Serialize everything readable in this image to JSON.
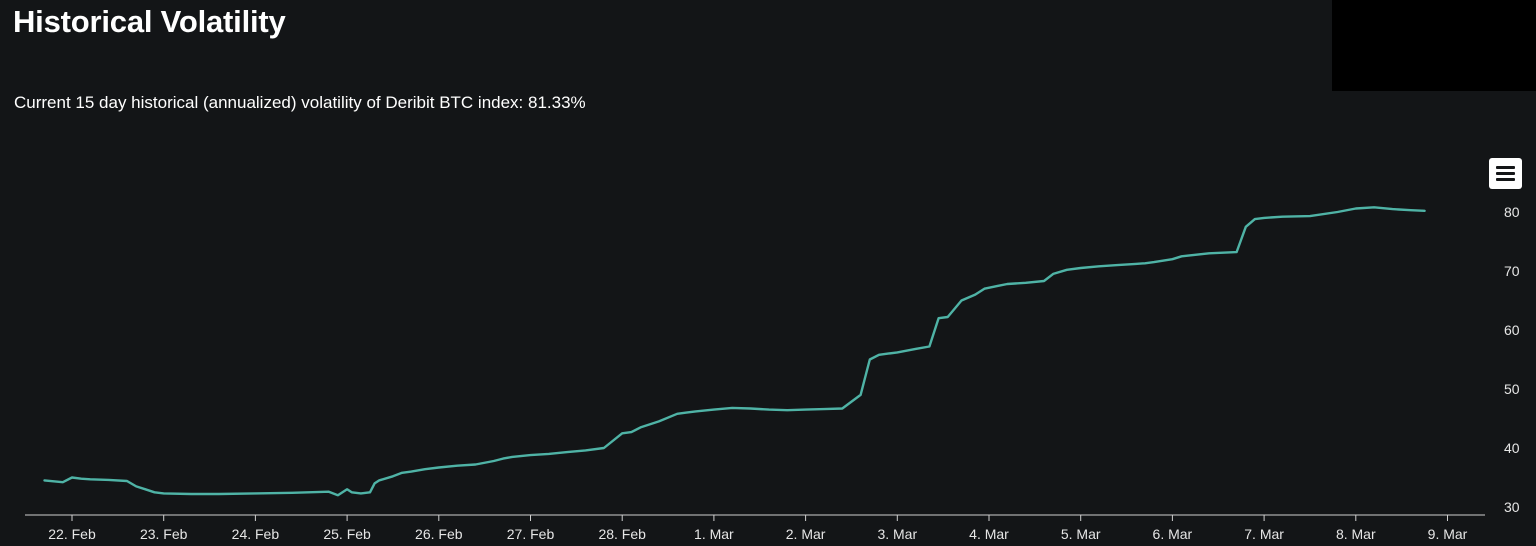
{
  "header": {
    "title": "Historical Volatility",
    "subtitle": "Current 15 day historical (annualized) volatility of Deribit BTC index: 81.33%"
  },
  "toolbar": {
    "menu_icon": "hamburger-menu-icon"
  },
  "colors": {
    "background": "#131517",
    "line": "#4fb3a6",
    "axis": "#cfcfcf",
    "text": "#ffffff"
  },
  "chart_data": {
    "type": "line",
    "title": "",
    "xlabel": "",
    "ylabel": "",
    "categories": [
      "22. Feb",
      "23. Feb",
      "24. Feb",
      "25. Feb",
      "26. Feb",
      "27. Feb",
      "28. Feb",
      "1. Mar",
      "2. Mar",
      "3. Mar",
      "4. Mar",
      "5. Mar",
      "6. Mar",
      "7. Mar",
      "8. Mar",
      "9. Mar"
    ],
    "ylim": [
      30,
      80
    ],
    "y_ticks": [
      80,
      70,
      60,
      50,
      40,
      30
    ],
    "y_axis_side": "right",
    "grid": false,
    "legend": "none",
    "series": [
      {
        "x": [
          21.7,
          21.9,
          22.0,
          22.1,
          22.2,
          22.4,
          22.6,
          22.7,
          22.8,
          22.9,
          23.0,
          23.3,
          23.6,
          24.0,
          24.4,
          24.8,
          24.9,
          25.0,
          25.05,
          25.15,
          25.25,
          25.3,
          25.35,
          25.5,
          25.6,
          25.7,
          25.85,
          26.0,
          26.2,
          26.4,
          26.6,
          26.7,
          26.8,
          27.0,
          27.2,
          27.4,
          27.6,
          27.8,
          28.0,
          28.1,
          28.2,
          28.4,
          28.6,
          28.7,
          28.8,
          29.0,
          29.2,
          29.4,
          29.6,
          29.8,
          30.0,
          30.2,
          30.4,
          30.6,
          30.7,
          30.8,
          30.9,
          31.0,
          31.2,
          31.35,
          31.45,
          31.55,
          31.7,
          31.85,
          31.95,
          32.1,
          32.2,
          32.4,
          32.6,
          32.7,
          32.85,
          33.0,
          33.2,
          33.4,
          33.6,
          33.7,
          33.8,
          34.0,
          34.1,
          34.4,
          34.7,
          34.8,
          34.9,
          35.0,
          35.2,
          35.5,
          35.8,
          36.0,
          36.2,
          36.4,
          36.6,
          36.75
        ],
        "y": [
          34.5,
          34.2,
          35.0,
          34.8,
          34.7,
          34.6,
          34.4,
          33.5,
          33.0,
          32.5,
          32.3,
          32.2,
          32.2,
          32.3,
          32.4,
          32.6,
          32.0,
          33.0,
          32.5,
          32.3,
          32.5,
          34.0,
          34.5,
          35.2,
          35.8,
          36.0,
          36.4,
          36.7,
          37.0,
          37.2,
          37.8,
          38.2,
          38.5,
          38.8,
          39.0,
          39.3,
          39.6,
          40.0,
          42.5,
          42.7,
          43.5,
          44.5,
          45.8,
          46.0,
          46.2,
          46.5,
          46.8,
          46.7,
          46.5,
          46.4,
          46.5,
          46.6,
          46.7,
          49.0,
          55.0,
          55.8,
          56.0,
          56.2,
          56.8,
          57.2,
          62.0,
          62.2,
          65.0,
          66.0,
          67.0,
          67.5,
          67.8,
          68.0,
          68.3,
          69.5,
          70.2,
          70.5,
          70.8,
          71.0,
          71.2,
          71.3,
          71.5,
          72.0,
          72.5,
          73.0,
          73.2,
          77.5,
          78.8,
          79.0,
          79.2,
          79.3,
          80.0,
          80.6,
          80.8,
          80.5,
          80.3,
          80.2
        ]
      }
    ]
  }
}
